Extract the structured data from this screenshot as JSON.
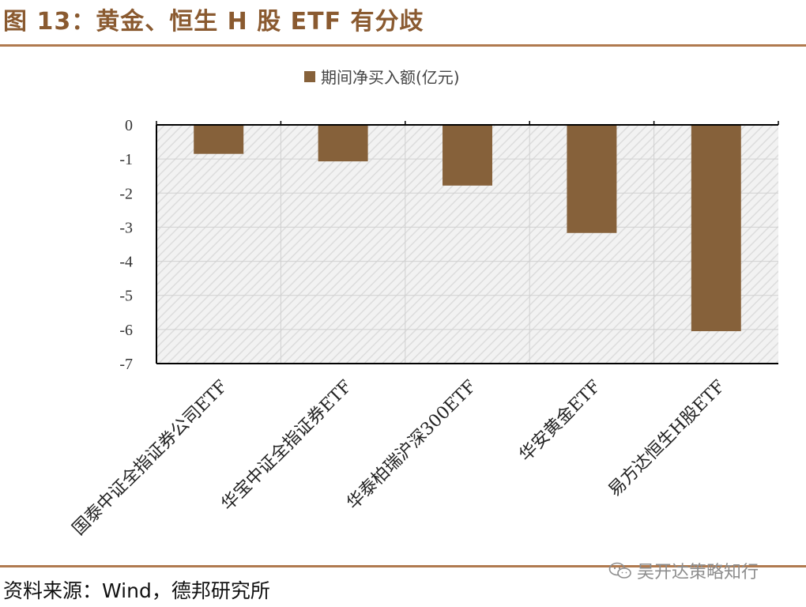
{
  "figure_title": "图 13：黄金、恒生 H 股 ETF 有分歧",
  "source_note": "资料来源：Wind，德邦研究所",
  "watermark_text": "吴开达策略知行",
  "colors": {
    "accent": "#8a5a30",
    "rule": "#b07a4f",
    "bar": "#86613a",
    "plot_fill": "#ececec",
    "grid": "#d0d0d0"
  },
  "chart_data": {
    "type": "bar",
    "title": "",
    "xlabel": "",
    "ylabel": "",
    "categories": [
      "国泰中证全指证券公司ETF",
      "华宝中证全指证券ETF",
      "华泰柏瑞沪深300ETF",
      "华安黄金ETF",
      "易方达恒生H股ETF"
    ],
    "series": [
      {
        "name": "期间净买入额(亿元)",
        "values": [
          -0.85,
          -1.07,
          -1.78,
          -3.17,
          -6.05
        ]
      }
    ],
    "ylim": [
      -7,
      0
    ],
    "yticks": [
      0,
      -1,
      -2,
      -3,
      -4,
      -5,
      -6,
      -7
    ],
    "legend_position": "top-center",
    "grid": true
  }
}
